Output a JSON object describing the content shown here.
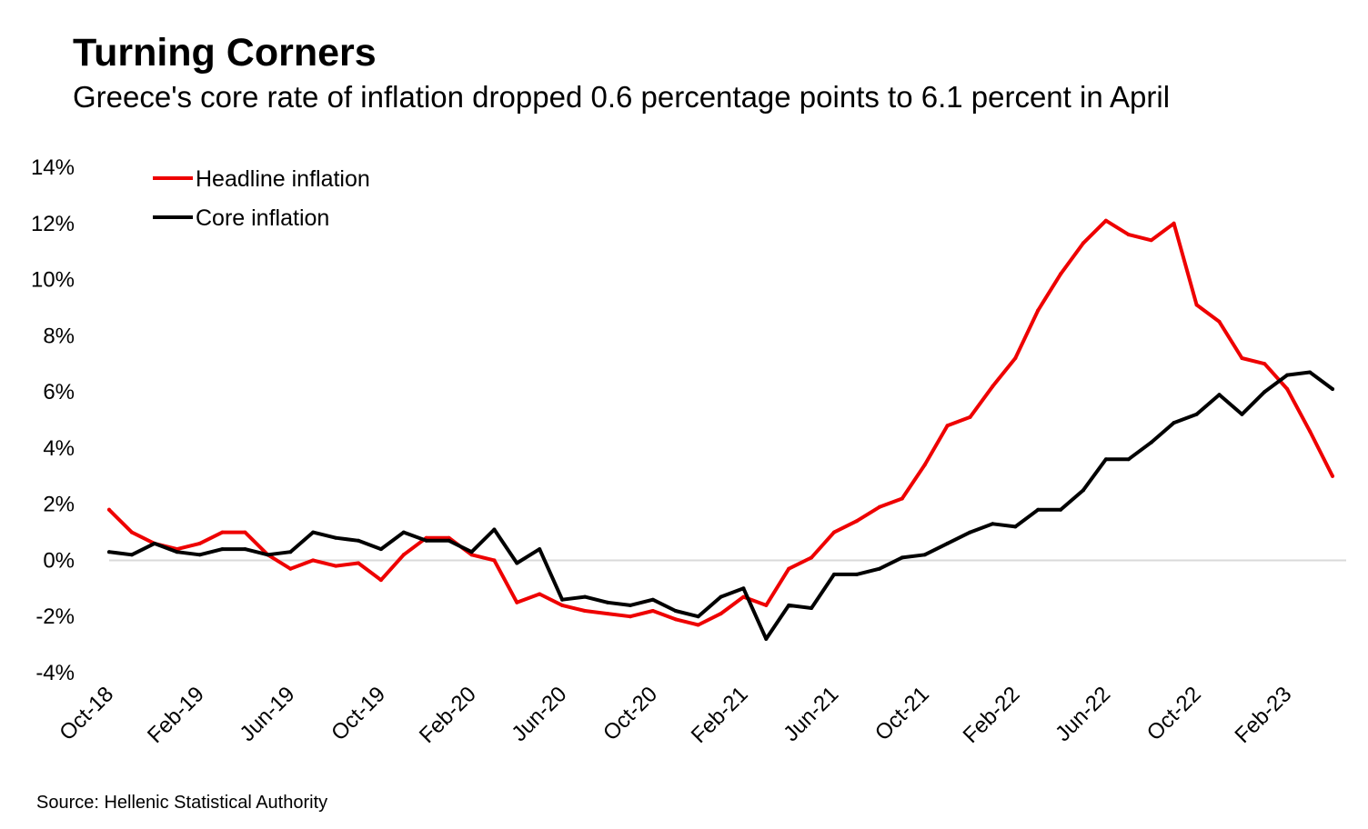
{
  "title": "Turning Corners",
  "subtitle": "Greece's core rate of inflation dropped 0.6 percentage points to 6.1 percent in April",
  "source": "Source: Hellenic Statistical Authority",
  "chart_data": {
    "type": "line",
    "ylim": [
      -4,
      14
    ],
    "y_ticks": [
      -4,
      -2,
      0,
      2,
      4,
      6,
      8,
      10,
      12,
      14
    ],
    "y_tick_labels": [
      "-4%",
      "-2%",
      "0%",
      "2%",
      "4%",
      "6%",
      "8%",
      "10%",
      "12%",
      "14%"
    ],
    "x": [
      "Oct-18",
      "Nov-18",
      "Dec-18",
      "Jan-19",
      "Feb-19",
      "Mar-19",
      "Apr-19",
      "May-19",
      "Jun-19",
      "Jul-19",
      "Aug-19",
      "Sep-19",
      "Oct-19",
      "Nov-19",
      "Dec-19",
      "Jan-20",
      "Feb-20",
      "Mar-20",
      "Apr-20",
      "May-20",
      "Jun-20",
      "Jul-20",
      "Aug-20",
      "Sep-20",
      "Oct-20",
      "Nov-20",
      "Dec-20",
      "Jan-21",
      "Feb-21",
      "Mar-21",
      "Apr-21",
      "May-21",
      "Jun-21",
      "Jul-21",
      "Aug-21",
      "Sep-21",
      "Oct-21",
      "Nov-21",
      "Dec-21",
      "Jan-22",
      "Feb-22",
      "Mar-22",
      "Apr-22",
      "May-22",
      "Jun-22",
      "Jul-22",
      "Aug-22",
      "Sep-22",
      "Oct-22",
      "Nov-22",
      "Dec-22",
      "Jan-23",
      "Feb-23",
      "Mar-23",
      "Apr-23"
    ],
    "x_tick_labels": [
      "Oct-18",
      "Feb-19",
      "Jun-19",
      "Oct-19",
      "Feb-20",
      "Jun-20",
      "Oct-20",
      "Feb-21",
      "Jun-21",
      "Oct-21",
      "Feb-22",
      "Jun-22",
      "Oct-22",
      "Feb-23"
    ],
    "x_tick_every": 4,
    "grid": false,
    "zero_line": true,
    "legend_position": "top-left",
    "series": [
      {
        "name": "Headline inflation",
        "color": "#ee0000",
        "values": [
          1.8,
          1.0,
          0.6,
          0.4,
          0.6,
          1.0,
          1.0,
          0.2,
          -0.3,
          0.0,
          -0.2,
          -0.1,
          -0.7,
          0.2,
          0.8,
          0.8,
          0.2,
          0.0,
          -1.5,
          -1.2,
          -1.6,
          -1.8,
          -1.9,
          -2.0,
          -1.8,
          -2.1,
          -2.3,
          -1.9,
          -1.3,
          -1.6,
          -0.3,
          0.1,
          1.0,
          1.4,
          1.9,
          2.2,
          3.4,
          4.8,
          5.1,
          6.2,
          7.2,
          8.9,
          10.2,
          11.3,
          12.1,
          11.6,
          11.4,
          12.0,
          9.1,
          8.5,
          7.2,
          7.0,
          6.1,
          4.6,
          3.0
        ]
      },
      {
        "name": "Core inflation",
        "color": "#000000",
        "values": [
          0.3,
          0.2,
          0.6,
          0.3,
          0.2,
          0.4,
          0.4,
          0.2,
          0.3,
          1.0,
          0.8,
          0.7,
          0.4,
          1.0,
          0.7,
          0.7,
          0.3,
          1.1,
          -0.1,
          0.4,
          -1.4,
          -1.3,
          -1.5,
          -1.6,
          -1.4,
          -1.8,
          -2.0,
          -1.3,
          -1.0,
          -2.8,
          -1.6,
          -1.7,
          -0.5,
          -0.5,
          -0.3,
          0.1,
          0.2,
          0.6,
          1.0,
          1.3,
          1.2,
          1.8,
          1.8,
          2.5,
          3.6,
          3.6,
          4.2,
          4.9,
          5.2,
          5.9,
          5.2,
          6.0,
          6.6,
          6.7,
          6.1
        ]
      }
    ]
  }
}
